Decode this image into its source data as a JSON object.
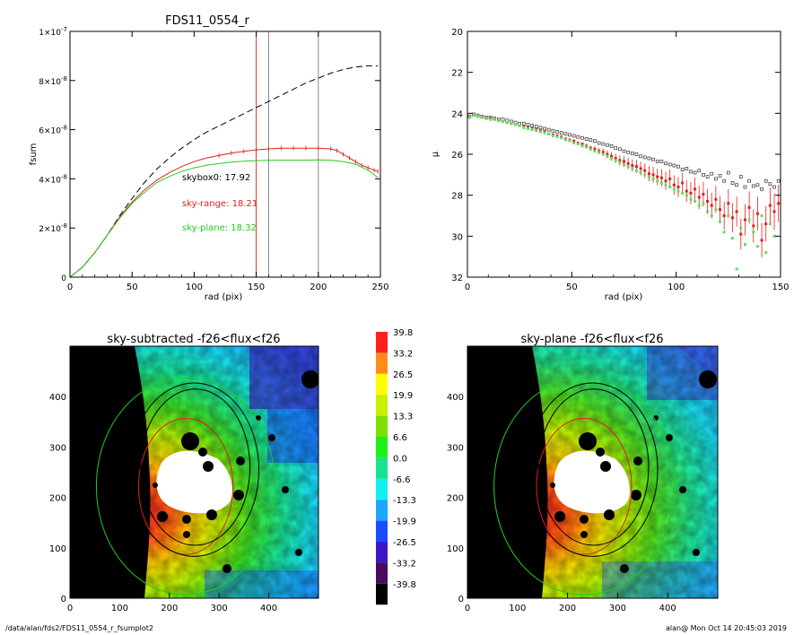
{
  "chart_data": [
    {
      "type": "line",
      "title": "FDS11_0554_r",
      "xlabel": "rad (pix)",
      "ylabel": "fsum",
      "xlim": [
        0,
        250
      ],
      "ylim": [
        0,
        1e-07
      ],
      "x_ticks": [
        "0",
        "50",
        "100",
        "150",
        "200",
        "250"
      ],
      "y_ticks": [
        {
          "v": 0,
          "m": "0",
          "e": ""
        },
        {
          "v": 2e-08,
          "m": "2×10",
          "e": "-8"
        },
        {
          "v": 4e-08,
          "m": "4×10",
          "e": "-8"
        },
        {
          "v": 6e-08,
          "m": "6×10",
          "e": "-8"
        },
        {
          "v": 8e-08,
          "m": "8×10",
          "e": "-8"
        },
        {
          "v": 1e-07,
          "m": "1×10",
          "e": "-7"
        }
      ],
      "vlines": [
        {
          "x": 150,
          "color": "#e03030"
        },
        {
          "x": 160,
          "color": "#888888"
        },
        {
          "x": 200,
          "color": "#888888"
        }
      ],
      "annotations": [
        {
          "text": "skybox0: 17.92",
          "color": "#000000",
          "x": 90,
          "y": 4e-08
        },
        {
          "text": "sky-range: 18.21",
          "color": "#e02020",
          "x": 90,
          "y": 2.95e-08
        },
        {
          "text": "sky-plane: 18.32",
          "color": "#22cc22",
          "x": 90,
          "y": 2.05e-08
        }
      ],
      "series": [
        {
          "color": "#000000",
          "dash": true,
          "x": [
            0,
            10,
            20,
            30,
            40,
            50,
            60,
            70,
            80,
            90,
            100,
            110,
            120,
            130,
            140,
            150,
            160,
            170,
            180,
            190,
            200,
            210,
            220,
            230,
            240,
            248
          ],
          "y": [
            0,
            4e-09,
            1e-08,
            1.7e-08,
            2.5e-08,
            3.2e-08,
            3.85e-08,
            4.4e-08,
            4.85e-08,
            5.25e-08,
            5.6e-08,
            5.9e-08,
            6.15e-08,
            6.4e-08,
            6.65e-08,
            6.9e-08,
            7.15e-08,
            7.4e-08,
            7.65e-08,
            7.9e-08,
            8.1e-08,
            8.3e-08,
            8.45e-08,
            8.55e-08,
            8.6e-08,
            8.6e-08
          ]
        },
        {
          "color": "#e02020",
          "errorbars": true,
          "x": [
            0,
            10,
            20,
            30,
            40,
            50,
            60,
            70,
            80,
            90,
            100,
            110,
            120,
            130,
            140,
            150,
            160,
            170,
            180,
            190,
            200,
            210,
            215,
            220,
            225,
            230,
            235,
            240,
            245,
            248
          ],
          "y": [
            0,
            4e-09,
            1e-08,
            1.7e-08,
            2.45e-08,
            3.05e-08,
            3.55e-08,
            3.95e-08,
            4.25e-08,
            4.5e-08,
            4.7e-08,
            4.85e-08,
            4.95e-08,
            5.05e-08,
            5.12e-08,
            5.18e-08,
            5.22e-08,
            5.25e-08,
            5.25e-08,
            5.25e-08,
            5.25e-08,
            5.22e-08,
            5.15e-08,
            5e-08,
            4.85e-08,
            4.7e-08,
            4.55e-08,
            4.45e-08,
            4.35e-08,
            4.3e-08
          ]
        },
        {
          "color": "#22cc22",
          "x": [
            0,
            10,
            20,
            30,
            40,
            50,
            60,
            70,
            80,
            90,
            100,
            110,
            120,
            130,
            140,
            150,
            160,
            170,
            180,
            190,
            200,
            210,
            220,
            230,
            240,
            248
          ],
          "y": [
            0,
            4e-09,
            1e-08,
            1.7e-08,
            2.4e-08,
            3e-08,
            3.45e-08,
            3.85e-08,
            4.1e-08,
            4.3e-08,
            4.45e-08,
            4.55e-08,
            4.62e-08,
            4.68e-08,
            4.72e-08,
            4.74e-08,
            4.75e-08,
            4.76e-08,
            4.76e-08,
            4.76e-08,
            4.77e-08,
            4.75e-08,
            4.7e-08,
            4.6e-08,
            4.35e-08,
            4.05e-08
          ]
        }
      ]
    },
    {
      "type": "scatter",
      "xlabel": "rad (pix)",
      "ylabel": "μ",
      "xlim": [
        0,
        150
      ],
      "ylim": [
        32,
        20
      ],
      "x_ticks": [
        "0",
        "50",
        "100",
        "150"
      ],
      "y_ticks": [
        "20",
        "22",
        "24",
        "26",
        "28",
        "30",
        "32"
      ],
      "series": [
        {
          "color": "#333333",
          "marker": "square-open",
          "x": [
            1,
            3,
            5,
            7,
            9,
            11,
            13,
            15,
            17,
            19,
            21,
            23,
            25,
            27,
            29,
            31,
            33,
            35,
            37,
            39,
            41,
            43,
            45,
            47,
            49,
            51,
            53,
            55,
            57,
            59,
            61,
            63,
            65,
            67,
            69,
            71,
            73,
            75,
            77,
            79,
            81,
            83,
            85,
            87,
            89,
            91,
            93,
            95,
            97,
            99,
            101,
            103,
            105,
            107,
            109,
            111,
            113,
            115,
            117,
            119,
            121,
            123,
            125,
            127,
            129,
            131,
            133,
            135,
            137,
            139,
            141,
            143,
            145,
            147,
            149
          ],
          "y": [
            24.15,
            24.05,
            24.1,
            24.15,
            24.2,
            24.2,
            24.25,
            24.3,
            24.3,
            24.35,
            24.4,
            24.45,
            24.5,
            24.5,
            24.55,
            24.6,
            24.65,
            24.7,
            24.75,
            24.8,
            24.85,
            24.9,
            24.95,
            25.0,
            25.05,
            25.1,
            25.15,
            25.2,
            25.25,
            25.3,
            25.35,
            25.45,
            25.5,
            25.55,
            25.6,
            25.7,
            25.75,
            25.85,
            25.9,
            25.95,
            26.0,
            26.1,
            26.15,
            26.2,
            26.25,
            26.35,
            26.35,
            26.45,
            26.5,
            26.55,
            26.6,
            26.75,
            26.7,
            26.85,
            26.9,
            26.8,
            27.0,
            27.1,
            26.95,
            27.2,
            27.05,
            27.3,
            26.9,
            27.4,
            27.5,
            27.1,
            27.6,
            27.3,
            27.55,
            27.5,
            27.7,
            27.3,
            27.45,
            27.6,
            27.3
          ]
        },
        {
          "color": "#e02020",
          "marker": "square-filled",
          "errorbars": true,
          "x": [
            1,
            3,
            5,
            7,
            9,
            11,
            13,
            15,
            17,
            19,
            21,
            23,
            25,
            27,
            29,
            31,
            33,
            35,
            37,
            39,
            41,
            43,
            45,
            47,
            49,
            51,
            53,
            55,
            57,
            59,
            61,
            63,
            65,
            67,
            69,
            71,
            73,
            75,
            77,
            79,
            81,
            83,
            85,
            87,
            89,
            91,
            93,
            95,
            97,
            99,
            101,
            103,
            105,
            107,
            109,
            111,
            113,
            115,
            117,
            119,
            121,
            123,
            125,
            127,
            129,
            131,
            133,
            135,
            137,
            139,
            141,
            143,
            145,
            147,
            149
          ],
          "y": [
            24.2,
            24.1,
            24.15,
            24.2,
            24.25,
            24.25,
            24.3,
            24.35,
            24.4,
            24.45,
            24.5,
            24.55,
            24.6,
            24.65,
            24.7,
            24.75,
            24.8,
            24.85,
            24.9,
            25.0,
            25.05,
            25.1,
            25.15,
            25.25,
            25.3,
            25.35,
            25.45,
            25.5,
            25.6,
            25.7,
            25.75,
            25.85,
            25.9,
            26.0,
            26.1,
            26.2,
            26.3,
            26.35,
            26.45,
            26.55,
            26.6,
            26.7,
            26.8,
            26.95,
            27.0,
            27.1,
            27.15,
            27.3,
            27.2,
            27.5,
            27.6,
            27.4,
            27.8,
            27.9,
            27.7,
            28.1,
            27.95,
            28.3,
            28.5,
            28.2,
            28.7,
            29.0,
            28.4,
            29.1,
            28.8,
            29.9,
            29.2,
            28.6,
            29.5,
            28.9,
            30.2,
            29.4,
            28.5,
            28.8,
            28.4
          ]
        },
        {
          "color": "#66dd66",
          "marker": "square-filled",
          "x": [
            1,
            3,
            5,
            7,
            9,
            11,
            13,
            15,
            17,
            19,
            21,
            23,
            25,
            27,
            29,
            31,
            33,
            35,
            37,
            39,
            41,
            43,
            45,
            47,
            49,
            51,
            53,
            55,
            57,
            59,
            61,
            63,
            65,
            67,
            69,
            71,
            73,
            75,
            77,
            79,
            81,
            83,
            85,
            87,
            89,
            91,
            93,
            95,
            97,
            99,
            101,
            103,
            105,
            107,
            109,
            111,
            113,
            115,
            117,
            119,
            121,
            123,
            125,
            127,
            129,
            131,
            133,
            135,
            137,
            139,
            141,
            143,
            145,
            147
          ],
          "y": [
            24.2,
            24.1,
            24.15,
            24.2,
            24.25,
            24.3,
            24.3,
            24.35,
            24.4,
            24.45,
            24.5,
            24.55,
            24.6,
            24.7,
            24.75,
            24.8,
            24.85,
            24.9,
            24.95,
            25.0,
            25.1,
            25.15,
            25.2,
            25.3,
            25.35,
            25.45,
            25.5,
            25.6,
            25.65,
            25.75,
            25.85,
            25.9,
            26.0,
            26.1,
            26.2,
            26.3,
            26.4,
            26.5,
            26.6,
            26.7,
            26.8,
            26.9,
            27.0,
            27.1,
            27.2,
            27.3,
            27.4,
            27.5,
            27.6,
            27.7,
            27.8,
            27.9,
            28.0,
            28.2,
            28.3,
            28.5,
            28.4,
            28.8,
            29.0,
            28.7,
            29.3,
            29.8,
            29.0,
            30.1,
            31.6,
            29.6,
            30.4,
            29.2,
            29.8,
            30.5,
            29.0,
            30.8,
            29.4,
            30.0
          ]
        }
      ]
    },
    {
      "type": "heatmap",
      "title": "sky-subtracted -f26<flux<f26",
      "xlim": [
        0,
        500
      ],
      "ylim": [
        0,
        500
      ],
      "x_ticks": [
        "0",
        "100",
        "200",
        "300",
        "400"
      ],
      "y_ticks": [
        "0",
        "100",
        "200",
        "300",
        "400"
      ],
      "ellipses": [
        {
          "cx": 233,
          "cy": 222,
          "rx": 95,
          "ry": 135,
          "color": "#e02020"
        },
        {
          "cx": 233,
          "cy": 222,
          "rx": 180,
          "ry": 215,
          "color": "#22cc22"
        },
        {
          "cx": 250,
          "cy": 255,
          "rx": 130,
          "ry": 172,
          "color": "#000000"
        },
        {
          "cx": 252,
          "cy": 260,
          "rx": 110,
          "ry": 155,
          "color": "#000000"
        }
      ]
    },
    {
      "type": "heatmap",
      "title": "sky-plane -f26<flux<f26",
      "xlim": [
        0,
        500
      ],
      "ylim": [
        0,
        500
      ],
      "x_ticks": [
        "0",
        "100",
        "200",
        "300",
        "400"
      ],
      "y_ticks": [
        "0",
        "100",
        "200",
        "300",
        "400"
      ]
    }
  ],
  "colorbar": {
    "labels": [
      "39.8",
      "33.2",
      "26.5",
      "19.9",
      "13.3",
      "6.6",
      "0.0",
      "-6.6",
      "-13.3",
      "-19.9",
      "-26.5",
      "-33.2",
      "-39.8"
    ],
    "colors": [
      "#ff1f1f",
      "#ff8c1a",
      "#ffff00",
      "#c8f000",
      "#7de000",
      "#1cf01c",
      "#19e28c",
      "#12f0f0",
      "#1aa8ff",
      "#1a4dff",
      "#3d18c8",
      "#4a0a60",
      "#000000"
    ]
  },
  "footer": {
    "left": "/data/alan/fds2/FDS11_0554_r_fsumplot2",
    "right": "alan@  Mon Oct 14 20:45:03 2019"
  }
}
